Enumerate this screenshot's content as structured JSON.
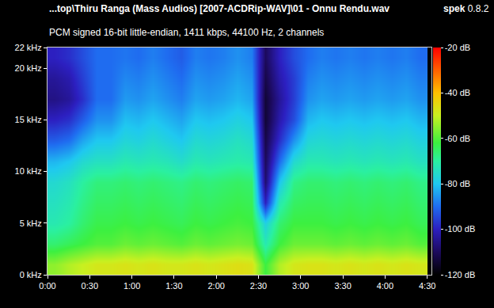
{
  "chart_data": {
    "type": "heatmap",
    "title": "...top\\Thiru Ranga (Mass Audios) [2007-ACDRip-WAV]\\01 - Onnu Rendu.wav",
    "subtitle": "PCM signed 16-bit little-endian, 1411 kbps, 44100 Hz, 2 channels",
    "annotations": [
      "spek 0.8.2"
    ],
    "grid": false,
    "x": [
      5,
      15,
      25,
      35,
      45,
      55,
      65,
      75,
      85,
      95,
      105,
      115,
      125,
      135,
      145,
      155,
      165,
      175,
      185,
      195,
      205,
      215,
      225,
      235,
      245,
      255,
      265
    ],
    "y": [
      1,
      3,
      5,
      7,
      9,
      11,
      13,
      15,
      17,
      19,
      21
    ],
    "z": [
      [
        -55,
        -52,
        -50,
        -48,
        -48,
        -47,
        -48,
        -47,
        -48,
        -48,
        -47,
        -48,
        -47,
        -46,
        -47,
        -62,
        -52,
        -48,
        -47,
        -47,
        -48,
        -47,
        -48,
        -47,
        -48,
        -47,
        -48
      ],
      [
        -66,
        -64,
        -62,
        -60,
        -60,
        -58,
        -59,
        -58,
        -59,
        -60,
        -58,
        -59,
        -58,
        -57,
        -58,
        -72,
        -62,
        -58,
        -58,
        -58,
        -59,
        -58,
        -59,
        -58,
        -59,
        -58,
        -60
      ],
      [
        -72,
        -70,
        -66,
        -63,
        -63,
        -62,
        -63,
        -62,
        -63,
        -64,
        -62,
        -63,
        -62,
        -61,
        -62,
        -78,
        -66,
        -62,
        -62,
        -62,
        -63,
        -62,
        -63,
        -62,
        -63,
        -62,
        -64
      ],
      [
        -74,
        -72,
        -68,
        -65,
        -65,
        -64,
        -65,
        -64,
        -65,
        -66,
        -64,
        -65,
        -64,
        -63,
        -64,
        -100,
        -72,
        -65,
        -64,
        -64,
        -65,
        -64,
        -65,
        -64,
        -65,
        -64,
        -66
      ],
      [
        -76,
        -74,
        -70,
        -67,
        -67,
        -66,
        -67,
        -66,
        -67,
        -68,
        -66,
        -67,
        -66,
        -65,
        -66,
        -108,
        -80,
        -68,
        -66,
        -66,
        -67,
        -66,
        -67,
        -66,
        -67,
        -66,
        -68
      ],
      [
        -82,
        -80,
        -76,
        -74,
        -74,
        -72,
        -73,
        -72,
        -73,
        -75,
        -72,
        -73,
        -72,
        -71,
        -72,
        -110,
        -90,
        -76,
        -72,
        -72,
        -73,
        -72,
        -73,
        -72,
        -73,
        -72,
        -74
      ],
      [
        -92,
        -90,
        -84,
        -80,
        -80,
        -77,
        -78,
        -76,
        -78,
        -80,
        -76,
        -77,
        -76,
        -74,
        -76,
        -112,
        -98,
        -86,
        -77,
        -76,
        -77,
        -76,
        -77,
        -76,
        -77,
        -76,
        -78
      ],
      [
        -100,
        -98,
        -92,
        -86,
        -86,
        -81,
        -82,
        -80,
        -82,
        -84,
        -80,
        -81,
        -80,
        -78,
        -80,
        -114,
        -102,
        -94,
        -82,
        -80,
        -81,
        -80,
        -81,
        -80,
        -81,
        -80,
        -82
      ],
      [
        -106,
        -104,
        -98,
        -90,
        -90,
        -85,
        -86,
        -84,
        -86,
        -88,
        -84,
        -85,
        -84,
        -82,
        -84,
        -114,
        -104,
        -96,
        -86,
        -84,
        -85,
        -84,
        -85,
        -84,
        -85,
        -84,
        -86
      ],
      [
        -104,
        -102,
        -96,
        -90,
        -90,
        -87,
        -88,
        -86,
        -88,
        -90,
        -86,
        -87,
        -86,
        -84,
        -86,
        -112,
        -102,
        -96,
        -88,
        -86,
        -87,
        -86,
        -87,
        -86,
        -87,
        -86,
        -88
      ],
      [
        -100,
        -98,
        -94,
        -90,
        -90,
        -89,
        -90,
        -88,
        -90,
        -92,
        -88,
        -89,
        -88,
        -86,
        -88,
        -110,
        -100,
        -94,
        -90,
        -88,
        -89,
        -88,
        -89,
        -88,
        -89,
        -88,
        -90
      ]
    ],
    "xlim": [
      0,
      273
    ],
    "xticks": [
      {
        "value": 0,
        "label": "0:00"
      },
      {
        "value": 30,
        "label": "0:30"
      },
      {
        "value": 60,
        "label": "1:00"
      },
      {
        "value": 90,
        "label": "1:30"
      },
      {
        "value": 120,
        "label": "2:00"
      },
      {
        "value": 150,
        "label": "2:30"
      },
      {
        "value": 180,
        "label": "3:00"
      },
      {
        "value": 210,
        "label": "3:30"
      },
      {
        "value": 240,
        "label": "4:00"
      },
      {
        "value": 270,
        "label": "4:30"
      }
    ],
    "ylim": [
      0,
      22
    ],
    "yticks": [
      {
        "value": 0,
        "label": "0 kHz"
      },
      {
        "value": 5,
        "label": "5 kHz"
      },
      {
        "value": 10,
        "label": "10 kHz"
      },
      {
        "value": 15,
        "label": "15 kHz"
      },
      {
        "value": 20,
        "label": "20 kHz"
      },
      {
        "value": 22,
        "label": "22 kHz"
      }
    ],
    "zlim": [
      -120,
      -20
    ],
    "zticks": [
      {
        "value": -20,
        "label": "-20 dB"
      },
      {
        "value": -40,
        "label": "-40 dB"
      },
      {
        "value": -60,
        "label": "-60 dB"
      },
      {
        "value": -80,
        "label": "-80 dB"
      },
      {
        "value": -100,
        "label": "-100 dB"
      },
      {
        "value": -120,
        "label": "-120 dB"
      }
    ]
  }
}
